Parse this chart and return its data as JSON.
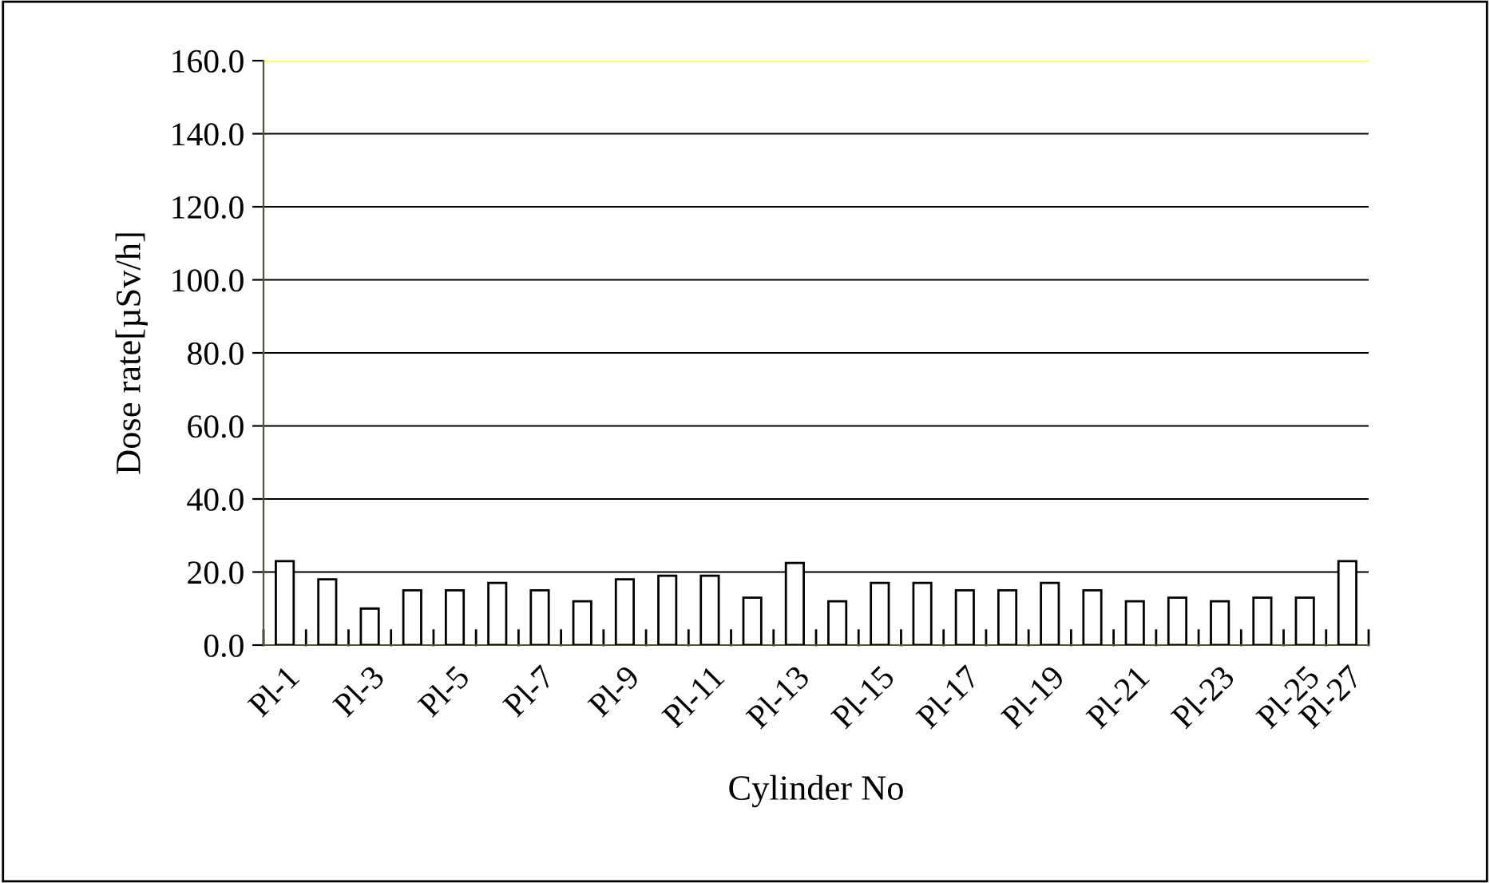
{
  "chart_data": {
    "type": "bar",
    "xlabel": "Cylinder No",
    "ylabel": "Dose rate[µSv/h]",
    "categories": [
      "Pl-1",
      null,
      "Pl-3",
      null,
      "Pl-5",
      null,
      "Pl-7",
      null,
      "Pl-9",
      null,
      "Pl-11",
      null,
      "Pl-13",
      null,
      "Pl-15",
      null,
      "Pl-17",
      null,
      "Pl-19",
      null,
      "Pl-21",
      null,
      "Pl-23",
      null,
      "Pl-25",
      "Pl-27"
    ],
    "values": [
      23,
      18,
      10,
      15,
      15,
      17,
      15,
      12,
      18,
      19,
      19,
      13,
      22.5,
      12,
      17,
      17,
      15,
      15,
      17,
      15,
      12,
      13,
      12,
      13,
      13,
      23
    ],
    "color": "#ffffff",
    "ylim": [
      0,
      160
    ],
    "yticks": [
      {
        "value": 0,
        "label": "0.0"
      },
      {
        "value": 20,
        "label": "20.0"
      },
      {
        "value": 40,
        "label": "40.0"
      },
      {
        "value": 60,
        "label": "60.0"
      },
      {
        "value": 80,
        "label": "80.0"
      },
      {
        "value": 100,
        "label": "100.0"
      },
      {
        "value": 120,
        "label": "120.0"
      },
      {
        "value": 140,
        "label": "140.0"
      },
      {
        "value": 160,
        "label": "160.0"
      }
    ],
    "grid": "y",
    "ref_lines": [
      {
        "axis": "y",
        "value": 160,
        "color": "#ffff66"
      }
    ],
    "legend": false
  }
}
